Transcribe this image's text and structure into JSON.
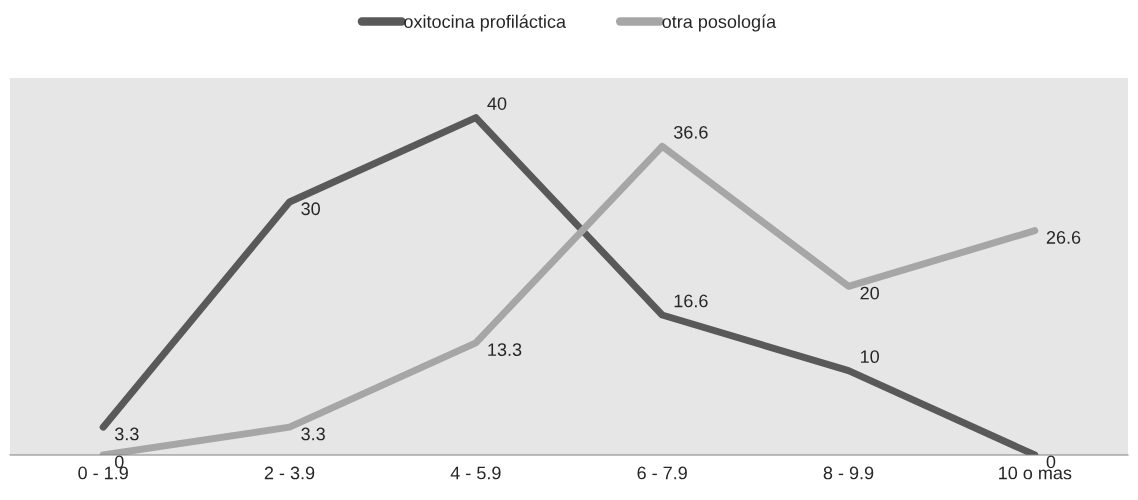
{
  "chart_data": {
    "type": "line",
    "categories": [
      "0 - 1.9",
      "2 - 3.9",
      "4 - 5.9",
      "6 - 7.9",
      "8 - 9.9",
      "10 o mas"
    ],
    "series": [
      {
        "name": "oxitocina profiláctica",
        "color": "#595959",
        "values": [
          3.3,
          30,
          40,
          16.6,
          10,
          0
        ]
      },
      {
        "name": "otra posología",
        "color": "#a6a6a6",
        "values": [
          0,
          3.3,
          13.3,
          36.6,
          20,
          26.6
        ]
      }
    ],
    "ylim": [
      0,
      44.7
    ],
    "data_labels": true,
    "legend": "top",
    "grid": false,
    "marker": "none",
    "line_style": "solid"
  }
}
